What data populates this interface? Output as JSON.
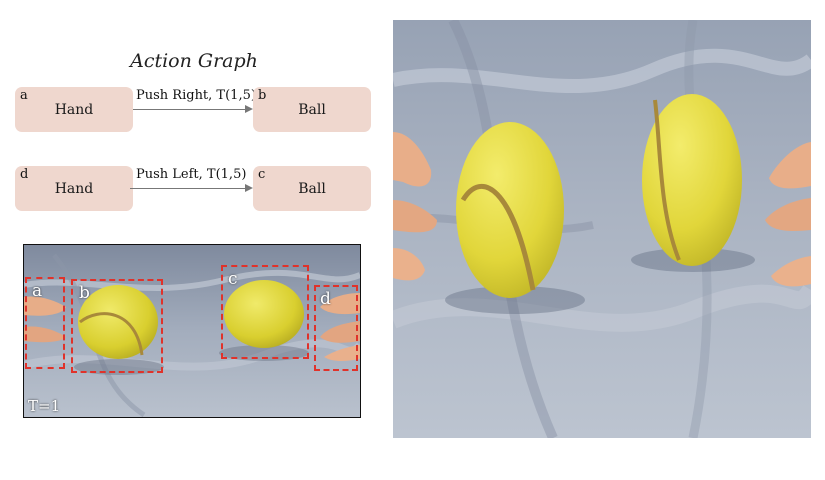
{
  "action_graph": {
    "title": "Action Graph",
    "rows": [
      {
        "source": {
          "letter": "a",
          "label": "Hand"
        },
        "edge": {
          "label": "Push Right, T(1,5)"
        },
        "target": {
          "letter": "b",
          "label": "Ball"
        }
      },
      {
        "source": {
          "letter": "d",
          "label": "Hand"
        },
        "edge": {
          "label": "Push Left, T(1,5)"
        },
        "target": {
          "letter": "c",
          "label": "Ball"
        }
      }
    ]
  },
  "frame": {
    "time_label": "T=1",
    "boxes": [
      {
        "letter": "a"
      },
      {
        "letter": "b"
      },
      {
        "letter": "c"
      },
      {
        "letter": "d"
      }
    ]
  },
  "colors": {
    "node_fill": "#efd7ce",
    "bbox_border": "#e0322a",
    "ball_yellow": "#e4d83a",
    "ball_seam": "#a8893a",
    "cloth": "#9aa5b6",
    "skin": "#e9b08c"
  }
}
